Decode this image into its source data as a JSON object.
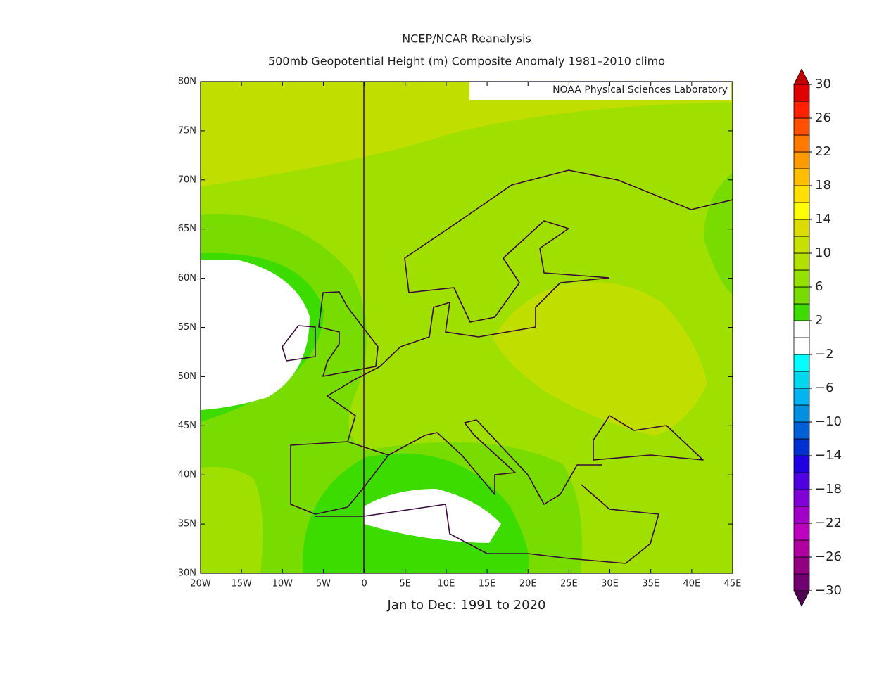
{
  "chart_data": {
    "type": "map",
    "title": "NCEP/NCAR Reanalysis",
    "subtitle": "500mb Geopotential Height (m) Composite Anomaly 1981–2010 climo",
    "credit": "NOAA Physical Sciences Laboratory",
    "x_label": "Jan to Dec: 1991 to 2020",
    "xlim": [
      -20,
      45
    ],
    "ylim": [
      30,
      80
    ],
    "xticks": [
      {
        "value": -20,
        "label": "20W"
      },
      {
        "value": -15,
        "label": "15W"
      },
      {
        "value": -10,
        "label": "10W"
      },
      {
        "value": -5,
        "label": "5W"
      },
      0,
      {
        "value": 5,
        "label": "5E"
      },
      {
        "value": 10,
        "label": "10E"
      },
      {
        "value": 15,
        "label": "15E"
      },
      {
        "value": 20,
        "label": "20E"
      },
      {
        "value": 25,
        "label": "25E"
      },
      {
        "value": 30,
        "label": "30E"
      },
      {
        "value": 35,
        "label": "35E"
      },
      {
        "value": 40,
        "label": "40E"
      },
      {
        "value": 45,
        "label": "45E"
      }
    ],
    "yticks": [
      {
        "value": 30,
        "label": "30N"
      },
      {
        "value": 35,
        "label": "35N"
      },
      {
        "value": 40,
        "label": "40N"
      },
      {
        "value": 45,
        "label": "45N"
      },
      {
        "value": 50,
        "label": "50N"
      },
      {
        "value": 55,
        "label": "55N"
      },
      {
        "value": 60,
        "label": "60N"
      },
      {
        "value": 65,
        "label": "65N"
      },
      {
        "value": 70,
        "label": "70N"
      },
      {
        "value": 75,
        "label": "75N"
      },
      {
        "value": 80,
        "label": "80N"
      }
    ],
    "colorbar": {
      "lim": [
        -30,
        30
      ],
      "ticks": [
        30,
        26,
        22,
        18,
        14,
        10,
        6,
        2,
        {
          "value": -2,
          "label": "−2"
        },
        {
          "value": -6,
          "label": "−6"
        },
        {
          "value": -10,
          "label": "−10"
        },
        {
          "value": -14,
          "label": "−14"
        },
        {
          "value": -18,
          "label": "−18"
        },
        {
          "value": -22,
          "label": "−22"
        },
        {
          "value": -26,
          "label": "−26"
        },
        {
          "value": -30,
          "label": "−30"
        }
      ],
      "colors": [
        "#700070",
        "#900080",
        "#b000a0",
        "#c000c0",
        "#a000c8",
        "#8000d8",
        "#5000e0",
        "#2000e0",
        "#0030d0",
        "#0060d8",
        "#0090e0",
        "#00b4f0",
        "#00d8f0",
        "#00ffff",
        "#ffffff",
        "#ffffff",
        "#3cdc00",
        "#78dc00",
        "#96e000",
        "#b4e000",
        "#c8e000",
        "#dcdc00",
        "#ffff00",
        "#ffe000",
        "#ffbe00",
        "#ff9a00",
        "#ff7800",
        "#ff5000",
        "#ff2000",
        "#e00000"
      ],
      "over_color": "#c00000",
      "under_color": "#500050"
    }
  }
}
